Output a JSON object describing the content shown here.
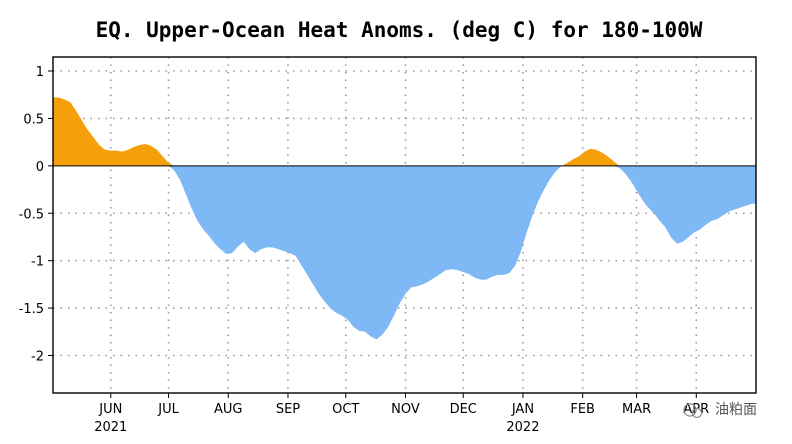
{
  "chart_data": {
    "type": "area",
    "title": "EQ. Upper-Ocean Heat Anoms. (deg C) for 180-100W",
    "xlabel": "",
    "ylabel": "",
    "ylim": [
      -2.5,
      1.2
    ],
    "xlim": [
      0,
      365
    ],
    "y_ticks": [
      1,
      0.5,
      0,
      -0.5,
      -1,
      -1.5,
      -2
    ],
    "y_tick_labels": [
      "1",
      "0.5",
      "0",
      "-0.5",
      "-1",
      "-1.5",
      "-2"
    ],
    "x_ticks": [
      {
        "label": "JUN",
        "day": 30
      },
      {
        "label": "JUL",
        "day": 60
      },
      {
        "label": "AUG",
        "day": 91
      },
      {
        "label": "SEP",
        "day": 122
      },
      {
        "label": "OCT",
        "day": 152
      },
      {
        "label": "NOV",
        "day": 183
      },
      {
        "label": "DEC",
        "day": 213
      },
      {
        "label": "JAN",
        "day": 244
      },
      {
        "label": "FEB",
        "day": 275
      },
      {
        "label": "MAR",
        "day": 303
      },
      {
        "label": "APR",
        "day": 334
      }
    ],
    "year_labels": [
      {
        "label": "2021",
        "day": 30
      },
      {
        "label": "2022",
        "day": 244
      }
    ],
    "grid": true,
    "colors": {
      "positive": "#f5a00a",
      "negative": "#7eb8f5"
    },
    "series": [
      {
        "x": [
          0,
          3,
          6,
          9,
          12,
          15,
          18,
          21,
          24,
          27,
          30,
          33,
          36,
          39,
          42,
          45,
          48,
          51,
          54,
          57,
          60,
          63,
          66,
          69,
          72,
          75,
          78,
          81,
          84,
          87,
          90,
          93,
          96,
          99,
          102,
          105,
          108,
          111,
          114,
          117,
          120,
          123,
          126,
          129,
          132,
          135,
          138,
          141,
          144,
          147,
          150,
          153,
          156,
          159,
          162,
          165,
          168,
          171,
          174,
          177,
          180,
          183,
          186,
          189,
          192,
          195,
          198,
          201,
          204,
          207,
          210,
          213,
          216,
          219,
          222,
          225,
          228,
          231,
          234,
          237,
          240,
          243,
          246,
          249,
          252,
          255,
          258,
          261,
          264,
          267,
          270,
          273,
          276,
          279,
          282,
          285,
          288,
          291,
          294,
          297,
          300,
          303,
          306,
          309,
          312,
          315,
          318,
          321,
          324,
          327,
          330,
          333,
          336,
          339,
          342,
          345,
          348,
          351,
          354,
          357,
          360,
          363,
          365
        ],
        "y": [
          0.72,
          0.72,
          0.7,
          0.67,
          0.58,
          0.48,
          0.38,
          0.3,
          0.22,
          0.17,
          0.16,
          0.16,
          0.15,
          0.17,
          0.2,
          0.22,
          0.23,
          0.21,
          0.17,
          0.1,
          0.03,
          -0.05,
          -0.15,
          -0.3,
          -0.45,
          -0.58,
          -0.67,
          -0.74,
          -0.82,
          -0.88,
          -0.93,
          -0.92,
          -0.85,
          -0.8,
          -0.88,
          -0.92,
          -0.88,
          -0.86,
          -0.86,
          -0.88,
          -0.9,
          -0.92,
          -0.95,
          -1.05,
          -1.15,
          -1.25,
          -1.35,
          -1.43,
          -1.5,
          -1.55,
          -1.58,
          -1.62,
          -1.7,
          -1.74,
          -1.75,
          -1.8,
          -1.83,
          -1.78,
          -1.7,
          -1.58,
          -1.45,
          -1.35,
          -1.28,
          -1.27,
          -1.25,
          -1.22,
          -1.18,
          -1.14,
          -1.1,
          -1.09,
          -1.1,
          -1.12,
          -1.14,
          -1.18,
          -1.2,
          -1.2,
          -1.17,
          -1.15,
          -1.15,
          -1.13,
          -1.05,
          -0.9,
          -0.7,
          -0.52,
          -0.37,
          -0.25,
          -0.14,
          -0.06,
          0.0,
          0.03,
          0.07,
          0.1,
          0.15,
          0.18,
          0.17,
          0.14,
          0.1,
          0.05,
          -0.02,
          -0.08,
          -0.16,
          -0.26,
          -0.36,
          -0.44,
          -0.5,
          -0.58,
          -0.65,
          -0.76,
          -0.82,
          -0.8,
          -0.75,
          -0.7,
          -0.67,
          -0.62,
          -0.58,
          -0.56,
          -0.52,
          -0.48,
          -0.46,
          -0.44,
          -0.42,
          -0.4,
          -0.4
        ]
      }
    ]
  },
  "watermark": "油粕面"
}
